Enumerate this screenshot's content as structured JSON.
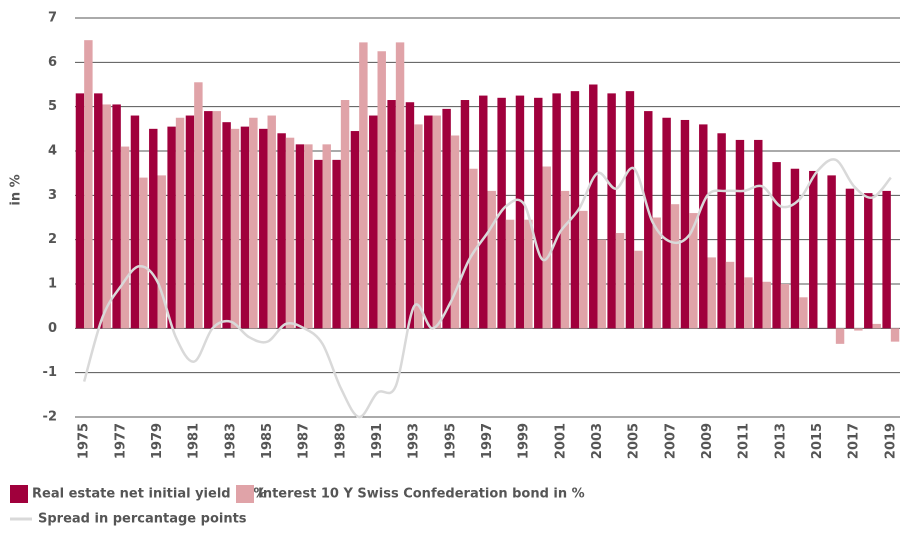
{
  "chart_data": {
    "type": "bar",
    "y_label": "in %",
    "categories": [
      "1975",
      null,
      "1977",
      null,
      "1979",
      null,
      "1981",
      null,
      "1983",
      null,
      "1985",
      null,
      "1987",
      null,
      "1989",
      null,
      "1991",
      null,
      "1993",
      null,
      "1995",
      null,
      "1997",
      null,
      "1999",
      null,
      "2001",
      null,
      "2003",
      null,
      "2005",
      null,
      "2007",
      null,
      "2009",
      null,
      "2011",
      null,
      "2013",
      null,
      "2015",
      null,
      "2017",
      null,
      "2019"
    ],
    "series": [
      {
        "name": "Real estate net initial yield in %",
        "color": "#a0003c",
        "values": [
          5.3,
          5.3,
          5.05,
          4.8,
          4.5,
          4.55,
          4.8,
          4.9,
          4.65,
          4.55,
          4.5,
          4.4,
          4.15,
          3.8,
          3.8,
          4.45,
          4.8,
          5.15,
          5.1,
          4.8,
          4.95,
          5.15,
          5.25,
          5.2,
          5.25,
          5.2,
          5.3,
          5.35,
          5.5,
          5.3,
          5.35,
          4.9,
          4.75,
          4.7,
          4.6,
          4.4,
          4.25,
          4.25,
          3.75,
          3.6,
          3.55,
          3.45,
          3.15,
          3.05,
          3.1
        ]
      },
      {
        "name": "Interest 10 Y Swiss Confederation bond in %",
        "color": "#e0a3a8",
        "values": [
          6.5,
          5.05,
          4.1,
          3.4,
          3.45,
          4.75,
          5.55,
          4.9,
          4.5,
          4.75,
          4.8,
          4.3,
          4.15,
          4.15,
          5.15,
          6.45,
          6.25,
          6.45,
          4.6,
          4.8,
          4.35,
          3.6,
          3.1,
          2.45,
          2.45,
          3.65,
          3.1,
          2.65,
          2.0,
          2.15,
          1.75,
          2.5,
          2.8,
          2.6,
          1.6,
          1.5,
          1.15,
          1.05,
          1.0,
          0.7,
          0.0,
          -0.35,
          -0.05,
          0.1,
          -0.3
        ]
      },
      {
        "name": "Spread in percantage points",
        "color": "#d9d9d9",
        "type": "line",
        "values": [
          -1.2,
          0.25,
          0.95,
          1.4,
          1.05,
          -0.2,
          -0.75,
          0.0,
          0.15,
          -0.2,
          -0.3,
          0.1,
          0.0,
          -0.35,
          -1.35,
          -2.0,
          -1.45,
          -1.3,
          0.5,
          0.0,
          0.6,
          1.55,
          2.15,
          2.75,
          2.8,
          1.55,
          2.2,
          2.7,
          3.5,
          3.15,
          3.6,
          2.4,
          1.95,
          2.1,
          3.0,
          3.1,
          3.1,
          3.2,
          2.75,
          2.9,
          3.55,
          3.8,
          3.2,
          2.95,
          3.4
        ]
      }
    ],
    "ylim": [
      -2,
      7
    ],
    "yticks": [
      -2,
      -1,
      0,
      1,
      2,
      3,
      4,
      5,
      6,
      7
    ],
    "grid": true
  }
}
